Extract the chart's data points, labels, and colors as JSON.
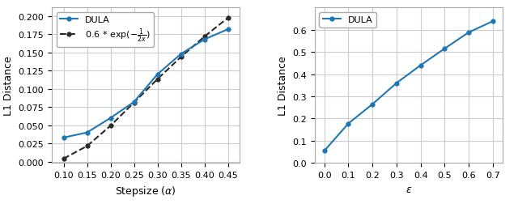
{
  "left": {
    "dula_x": [
      0.1,
      0.15,
      0.2,
      0.25,
      0.3,
      0.35,
      0.4,
      0.45
    ],
    "dula_y": [
      0.033,
      0.04,
      0.06,
      0.082,
      0.12,
      0.148,
      0.168,
      0.182
    ],
    "xlabel": "Stepsize ($\\alpha$)",
    "ylabel": "L1 Distance",
    "xlim": [
      0.075,
      0.475
    ],
    "ylim": [
      -0.002,
      0.212
    ],
    "xticks": [
      0.1,
      0.15,
      0.2,
      0.25,
      0.3,
      0.35,
      0.4,
      0.45
    ],
    "yticks": [
      0.0,
      0.025,
      0.05,
      0.075,
      0.1,
      0.125,
      0.15,
      0.175,
      0.2
    ],
    "dula_label": "DULA",
    "ref_label": "0.6 * exp($-\\frac{1}{2x}$)",
    "line_color": "#1f77b4",
    "ref_color": "#2a2a2a"
  },
  "right": {
    "dula_x": [
      0.0,
      0.1,
      0.2,
      0.3,
      0.4,
      0.5,
      0.6,
      0.7
    ],
    "dula_y": [
      0.055,
      0.178,
      0.265,
      0.36,
      0.44,
      0.515,
      0.588,
      0.638
    ],
    "xlabel": "$\\varepsilon$",
    "ylabel": "L1 Distance",
    "xlim": [
      -0.04,
      0.74
    ],
    "ylim": [
      0.0,
      0.7
    ],
    "xticks": [
      0.0,
      0.1,
      0.2,
      0.3,
      0.4,
      0.5,
      0.6,
      0.7
    ],
    "yticks": [
      0.0,
      0.1,
      0.2,
      0.3,
      0.4,
      0.5,
      0.6
    ],
    "dula_label": "DULA",
    "line_color": "#1f77b4"
  },
  "figure": {
    "bg_color": "#ffffff",
    "plot_bg_color": "#ffffff",
    "grid_color": "#cccccc",
    "figsize": [
      6.4,
      2.53
    ],
    "dpi": 100
  }
}
